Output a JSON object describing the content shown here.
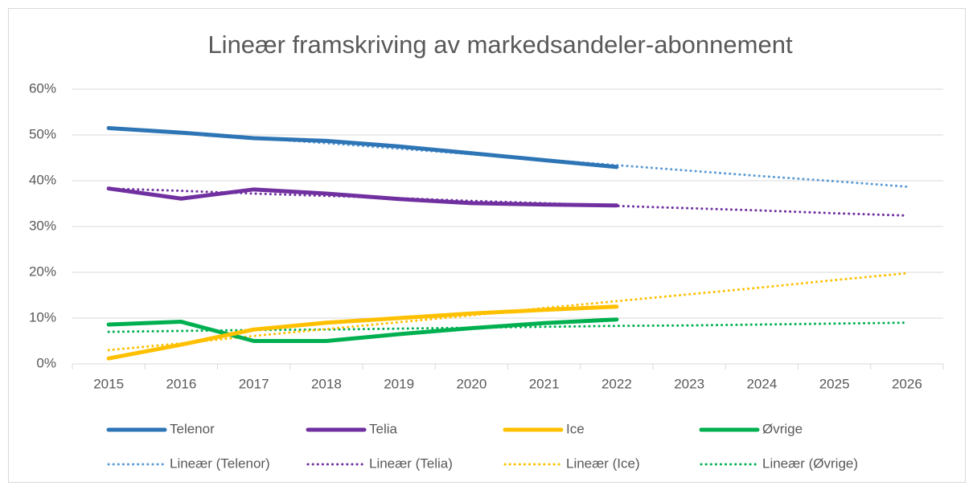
{
  "chart_data": {
    "type": "line",
    "title": "Lineær framskriving av markedsandeler-abonnement",
    "categories": [
      "2015",
      "2016",
      "2017",
      "2018",
      "2019",
      "2020",
      "2021",
      "2022",
      "2023",
      "2024",
      "2025",
      "2026"
    ],
    "ylim": [
      0,
      60
    ],
    "yticks": [
      {
        "value": 0,
        "label": "0%"
      },
      {
        "value": 10,
        "label": "10%"
      },
      {
        "value": 20,
        "label": "20%"
      },
      {
        "value": 30,
        "label": "30%"
      },
      {
        "value": 40,
        "label": "40%"
      },
      {
        "value": 50,
        "label": "50%"
      },
      {
        "value": 60,
        "label": "60%"
      }
    ],
    "grid": true,
    "legend": "bottom",
    "series": [
      {
        "name": "Telenor",
        "color": "#2e75b6",
        "style": "solid",
        "values": [
          51.5,
          50.5,
          49.3,
          48.7,
          47.5,
          46.0,
          44.5,
          43.0,
          null,
          null,
          null,
          null
        ]
      },
      {
        "name": "Telia",
        "color": "#7030a0",
        "style": "solid",
        "values": [
          38.3,
          36.1,
          38.1,
          37.2,
          36.0,
          35.1,
          34.8,
          34.6,
          null,
          null,
          null,
          null
        ]
      },
      {
        "name": "Ice",
        "color": "#ffc000",
        "style": "solid",
        "values": [
          1.2,
          4.2,
          7.5,
          9.0,
          10.0,
          11.0,
          11.8,
          12.5,
          null,
          null,
          null,
          null
        ]
      },
      {
        "name": "Øvrige",
        "color": "#00b050",
        "style": "solid",
        "values": [
          8.6,
          9.2,
          5.0,
          5.0,
          6.5,
          7.8,
          8.9,
          9.7,
          null,
          null,
          null,
          null
        ]
      },
      {
        "name": "Lineær (Telenor)",
        "color": "#5b9bd5",
        "style": "dotted",
        "values": [
          51.7,
          50.5,
          49.3,
          48.2,
          47.0,
          45.8,
          44.6,
          43.4,
          42.2,
          41.0,
          39.9,
          38.7
        ]
      },
      {
        "name": "Lineær (Telia)",
        "color": "#7030a0",
        "style": "dotted",
        "values": [
          38.3,
          37.8,
          37.2,
          36.7,
          36.2,
          35.6,
          35.1,
          34.5,
          34.0,
          33.5,
          32.9,
          32.4
        ]
      },
      {
        "name": "Lineær (Ice)",
        "color": "#ffc000",
        "style": "dotted",
        "values": [
          3.0,
          4.5,
          6.1,
          7.6,
          9.1,
          10.6,
          12.2,
          13.7,
          15.2,
          16.7,
          18.3,
          19.8
        ]
      },
      {
        "name": "Lineær (Øvrige)",
        "color": "#00b050",
        "style": "dotted",
        "values": [
          7.0,
          7.2,
          7.4,
          7.5,
          7.7,
          7.9,
          8.1,
          8.3,
          8.4,
          8.6,
          8.8,
          9.0
        ]
      }
    ]
  }
}
